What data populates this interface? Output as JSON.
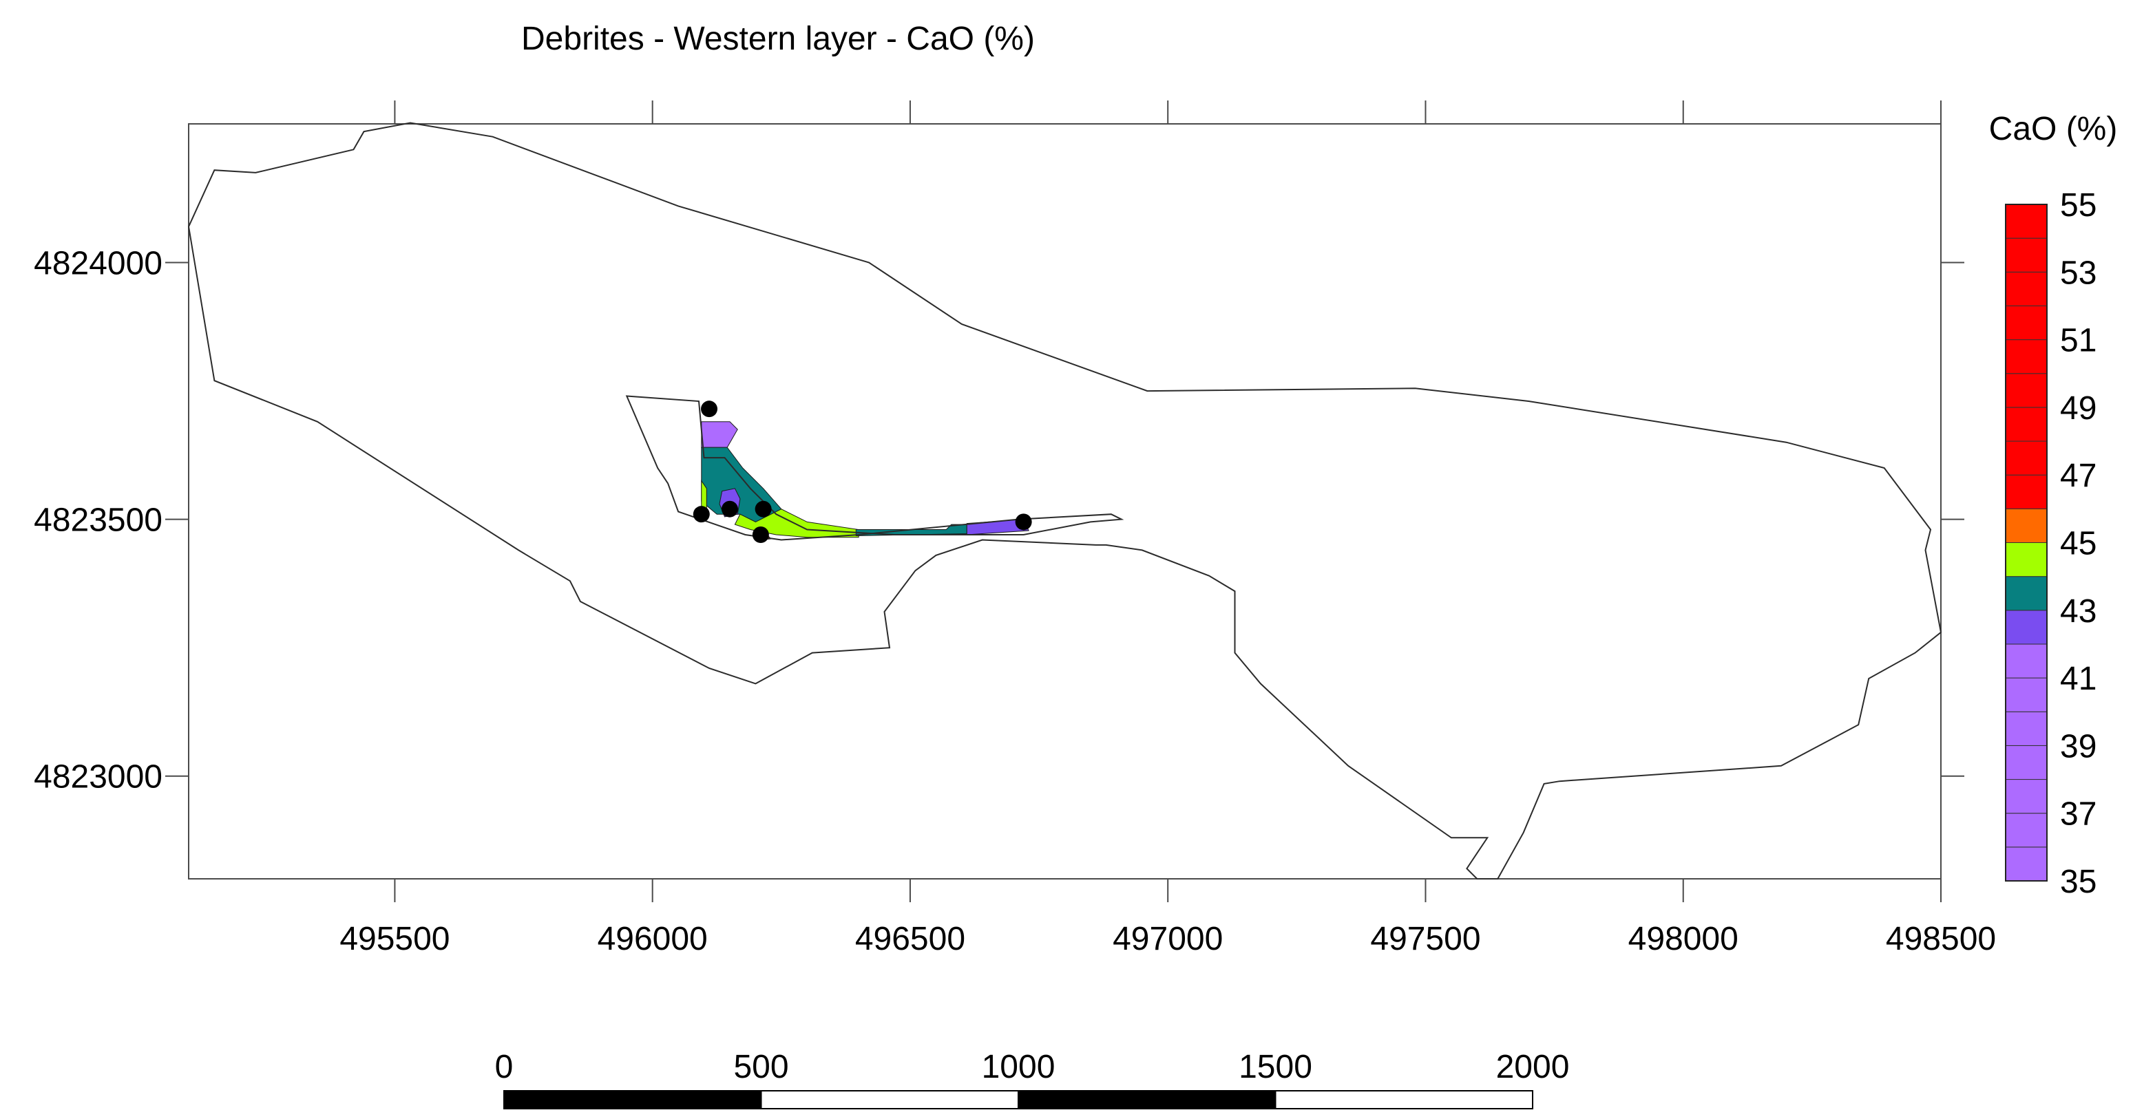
{
  "chart_data": {
    "type": "contour-map",
    "title": "Debrites - Western layer - CaO (%)",
    "xlim": [
      495100,
      498500
    ],
    "ylim": [
      4822800,
      4824270
    ],
    "x_ticks": [
      495500,
      496000,
      496500,
      497000,
      497500,
      498000,
      498500
    ],
    "y_ticks": [
      4823000,
      4823500,
      4824000
    ],
    "x_tick_labels": [
      "495500",
      "496000",
      "496500",
      "497000",
      "497500",
      "498000",
      "498500"
    ],
    "y_tick_labels": [
      "4823000",
      "4823500",
      "4824000"
    ],
    "legend": {
      "title": "CaO (%)",
      "min": 35,
      "max": 55,
      "step": 1,
      "labels": [
        "55",
        "53",
        "51",
        "49",
        "47",
        "45",
        "43",
        "41",
        "39",
        "37",
        "35"
      ],
      "bands": [
        {
          "from": 35,
          "to": 43,
          "color": "#ad6bff"
        },
        {
          "from": 42,
          "to": 43,
          "color": "#7a4df0"
        },
        {
          "from": 43,
          "to": 44,
          "color": "#078080"
        },
        {
          "from": 44,
          "to": 45,
          "color": "#a3ff00"
        },
        {
          "from": 45,
          "to": 46,
          "color": "#ff6a00"
        },
        {
          "from": 46,
          "to": 55,
          "color": "#ff0000"
        }
      ]
    },
    "boundary": [
      [
        495100,
        4824070
      ],
      [
        495150,
        4824180
      ],
      [
        495230,
        4824175
      ],
      [
        495420,
        4824220
      ],
      [
        495440,
        4824255
      ],
      [
        495530,
        4824272
      ],
      [
        495690,
        4824245
      ],
      [
        496050,
        4824110
      ],
      [
        496420,
        4824000
      ],
      [
        496600,
        4823880
      ],
      [
        496960,
        4823750
      ],
      [
        497480,
        4823755
      ],
      [
        497700,
        4823730
      ],
      [
        498200,
        4823650
      ],
      [
        498390,
        4823600
      ],
      [
        498480,
        4823480
      ],
      [
        498470,
        4823440
      ],
      [
        498500,
        4823280
      ],
      [
        498450,
        4823240
      ],
      [
        498360,
        4823190
      ],
      [
        498340,
        4823100
      ],
      [
        498190,
        4823020
      ],
      [
        497760,
        4822990
      ],
      [
        497730,
        4822985
      ],
      [
        497690,
        4822890
      ],
      [
        497640,
        4822800
      ],
      [
        497600,
        4822800
      ],
      [
        497580,
        4822820
      ],
      [
        497600,
        4822850
      ],
      [
        497620,
        4822880
      ],
      [
        497600,
        4822880
      ],
      [
        497550,
        4822880
      ],
      [
        497350,
        4823020
      ],
      [
        497180,
        4823180
      ],
      [
        497130,
        4823240
      ],
      [
        497130,
        4823360
      ],
      [
        497080,
        4823390
      ],
      [
        496950,
        4823440
      ],
      [
        496880,
        4823450
      ],
      [
        496860,
        4823450
      ],
      [
        496640,
        4823460
      ],
      [
        496550,
        4823430
      ],
      [
        496510,
        4823400
      ],
      [
        496450,
        4823320
      ],
      [
        496460,
        4823250
      ],
      [
        496310,
        4823240
      ],
      [
        496200,
        4823180
      ],
      [
        496110,
        4823210
      ],
      [
        495860,
        4823340
      ],
      [
        495840,
        4823380
      ],
      [
        495740,
        4823440
      ],
      [
        495350,
        4823690
      ],
      [
        495150,
        4823770
      ],
      [
        495100,
        4824070
      ]
    ],
    "interpolation_area": [
      [
        495950,
        4823740
      ],
      [
        496090,
        4823730
      ],
      [
        496100,
        4823620
      ],
      [
        496140,
        4823620
      ],
      [
        496190,
        4823560
      ],
      [
        496240,
        4823510
      ],
      [
        496300,
        4823480
      ],
      [
        496470,
        4823470
      ],
      [
        496720,
        4823470
      ],
      [
        496850,
        4823495
      ],
      [
        496910,
        4823500
      ],
      [
        496890,
        4823510
      ],
      [
        496710,
        4823500
      ],
      [
        496400,
        4823470
      ],
      [
        496250,
        4823460
      ],
      [
        496180,
        4823470
      ],
      [
        496050,
        4823515
      ],
      [
        496030,
        4823570
      ],
      [
        496010,
        4823600
      ],
      [
        495950,
        4823740
      ]
    ],
    "samples": [
      {
        "x": 496110,
        "y": 4823715
      },
      {
        "x": 496095,
        "y": 4823510
      },
      {
        "x": 496150,
        "y": 4823520
      },
      {
        "x": 496215,
        "y": 4823520
      },
      {
        "x": 496210,
        "y": 4823470
      },
      {
        "x": 496720,
        "y": 4823495
      }
    ],
    "contour_regions": [
      {
        "color": "#ad6bff",
        "points": [
          [
            496095,
            4823690
          ],
          [
            496150,
            4823690
          ],
          [
            496165,
            4823675
          ],
          [
            496145,
            4823640
          ],
          [
            496095,
            4823640
          ]
        ]
      },
      {
        "color": "#078080",
        "points": [
          [
            496095,
            4823640
          ],
          [
            496145,
            4823640
          ],
          [
            496175,
            4823600
          ],
          [
            496215,
            4823560
          ],
          [
            496250,
            4823520
          ],
          [
            496230,
            4823500
          ],
          [
            496200,
            4823495
          ],
          [
            496170,
            4823510
          ],
          [
            496125,
            4823510
          ],
          [
            496095,
            4823535
          ]
        ]
      },
      {
        "color": "#a3ff00",
        "points": [
          [
            496095,
            4823575
          ],
          [
            496105,
            4823560
          ],
          [
            496105,
            4823515
          ],
          [
            496095,
            4823505
          ]
        ]
      },
      {
        "color": "#7a4df0",
        "points": [
          [
            496135,
            4823555
          ],
          [
            496160,
            4823560
          ],
          [
            496170,
            4823540
          ],
          [
            496165,
            4823510
          ],
          [
            496140,
            4823505
          ],
          [
            496130,
            4823530
          ]
        ]
      },
      {
        "color": "#a3ff00",
        "points": [
          [
            496170,
            4823510
          ],
          [
            496200,
            4823495
          ],
          [
            496250,
            4823520
          ],
          [
            496300,
            4823495
          ],
          [
            496400,
            4823480
          ],
          [
            496400,
            4823465
          ],
          [
            496300,
            4823465
          ],
          [
            496240,
            4823470
          ],
          [
            496190,
            4823480
          ],
          [
            496160,
            4823490
          ]
        ]
      },
      {
        "color": "#078080",
        "points": [
          [
            496395,
            4823480
          ],
          [
            496570,
            4823480
          ],
          [
            496580,
            4823490
          ],
          [
            496610,
            4823490
          ],
          [
            496610,
            4823472
          ],
          [
            496395,
            4823468
          ]
        ]
      },
      {
        "color": "#7a4df0",
        "points": [
          [
            496610,
            4823492
          ],
          [
            496720,
            4823500
          ],
          [
            496730,
            4823478
          ],
          [
            496610,
            4823470
          ]
        ]
      },
      {
        "color": "#ff0000",
        "points": [
          [
            496200,
            4823478
          ],
          [
            496220,
            4823472
          ],
          [
            496230,
            4823462
          ],
          [
            496210,
            4823460
          ]
        ]
      }
    ],
    "scale_bar": {
      "labels": [
        "0",
        "500",
        "1000",
        "1500",
        "2000"
      ],
      "segments": [
        {
          "from": 0,
          "to": 500,
          "fill": "#000000"
        },
        {
          "from": 500,
          "to": 1000,
          "fill": "#ffffff"
        },
        {
          "from": 1000,
          "to": 1500,
          "fill": "#000000"
        },
        {
          "from": 1500,
          "to": 2000,
          "fill": "#ffffff"
        }
      ]
    }
  }
}
